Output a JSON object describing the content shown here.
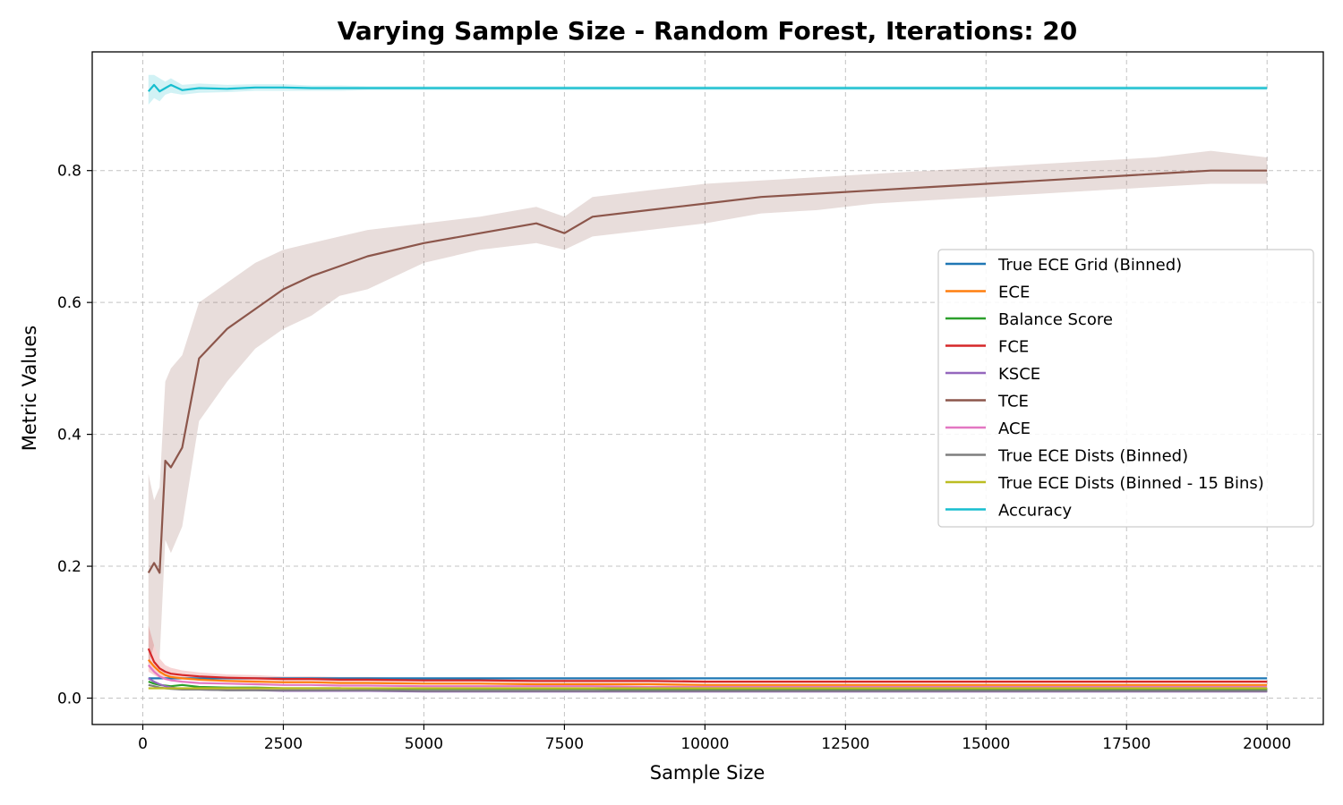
{
  "chart_data": {
    "type": "line",
    "title": "Varying Sample Size - Random Forest, Iterations: 20",
    "xlabel": "Sample Size",
    "ylabel": "Metric Values",
    "xlim": [
      -900,
      21000
    ],
    "ylim": [
      -0.04,
      0.98
    ],
    "xticks": [
      0,
      2500,
      5000,
      7500,
      10000,
      12500,
      15000,
      17500,
      20000
    ],
    "yticks": [
      0.0,
      0.2,
      0.4,
      0.6,
      0.8
    ],
    "grid": true,
    "legend_position": "center-right",
    "x": [
      100,
      200,
      300,
      400,
      500,
      700,
      1000,
      1500,
      2000,
      2500,
      3000,
      3500,
      4000,
      5000,
      6000,
      7000,
      7500,
      8000,
      9000,
      10000,
      11000,
      12000,
      13000,
      14000,
      15000,
      16000,
      17000,
      18000,
      19000,
      20000
    ],
    "series": [
      {
        "name": "True ECE Grid (Binned)",
        "color": "#1f77b4",
        "values": [
          0.03,
          0.03,
          0.03,
          0.03,
          0.03,
          0.03,
          0.03,
          0.03,
          0.03,
          0.03,
          0.03,
          0.03,
          0.03,
          0.03,
          0.03,
          0.03,
          0.03,
          0.03,
          0.03,
          0.03,
          0.03,
          0.03,
          0.03,
          0.03,
          0.03,
          0.03,
          0.03,
          0.03,
          0.03,
          0.03
        ]
      },
      {
        "name": "ECE",
        "color": "#ff7f0e",
        "values": [
          0.058,
          0.048,
          0.04,
          0.035,
          0.032,
          0.03,
          0.028,
          0.026,
          0.025,
          0.024,
          0.024,
          0.023,
          0.023,
          0.022,
          0.022,
          0.021,
          0.021,
          0.021,
          0.021,
          0.02,
          0.02,
          0.02,
          0.02,
          0.02,
          0.02,
          0.02,
          0.02,
          0.02,
          0.02,
          0.02
        ]
      },
      {
        "name": "Balance Score",
        "color": "#2ca02c",
        "values": [
          0.025,
          0.022,
          0.02,
          0.019,
          0.018,
          0.02,
          0.017,
          0.016,
          0.016,
          0.015,
          0.015,
          0.015,
          0.014,
          0.014,
          0.014,
          0.014,
          0.014,
          0.014,
          0.013,
          0.013,
          0.013,
          0.013,
          0.013,
          0.013,
          0.013,
          0.013,
          0.013,
          0.013,
          0.013,
          0.013
        ]
      },
      {
        "name": "FCE",
        "color": "#d62728",
        "values": [
          0.075,
          0.055,
          0.045,
          0.04,
          0.037,
          0.035,
          0.033,
          0.031,
          0.03,
          0.029,
          0.029,
          0.028,
          0.028,
          0.027,
          0.027,
          0.026,
          0.026,
          0.026,
          0.026,
          0.025,
          0.025,
          0.025,
          0.025,
          0.025,
          0.025,
          0.025,
          0.025,
          0.025,
          0.025,
          0.025
        ]
      },
      {
        "name": "KSCE",
        "color": "#9467bd",
        "values": [
          0.03,
          0.025,
          0.021,
          0.018,
          0.016,
          0.014,
          0.013,
          0.012,
          0.012,
          0.011,
          0.011,
          0.011,
          0.011,
          0.01,
          0.01,
          0.01,
          0.01,
          0.01,
          0.01,
          0.01,
          0.01,
          0.01,
          0.01,
          0.01,
          0.01,
          0.01,
          0.01,
          0.01,
          0.01,
          0.01
        ]
      },
      {
        "name": "TCE",
        "color": "#8c564b",
        "values": [
          0.19,
          0.205,
          0.19,
          0.36,
          0.35,
          0.38,
          0.515,
          0.56,
          0.59,
          0.62,
          0.64,
          0.655,
          0.67,
          0.69,
          0.705,
          0.72,
          0.705,
          0.73,
          0.74,
          0.75,
          0.76,
          0.765,
          0.77,
          0.775,
          0.78,
          0.785,
          0.79,
          0.795,
          0.8,
          0.8
        ]
      },
      {
        "name": "ACE",
        "color": "#e377c2",
        "values": [
          0.05,
          0.04,
          0.033,
          0.029,
          0.027,
          0.025,
          0.023,
          0.022,
          0.021,
          0.02,
          0.02,
          0.019,
          0.019,
          0.018,
          0.018,
          0.018,
          0.018,
          0.018,
          0.017,
          0.017,
          0.017,
          0.017,
          0.017,
          0.017,
          0.017,
          0.017,
          0.017,
          0.017,
          0.017,
          0.017
        ]
      },
      {
        "name": "True ECE Dists (Binned)",
        "color": "#7f7f7f",
        "values": [
          0.02,
          0.018,
          0.016,
          0.015,
          0.014,
          0.013,
          0.013,
          0.012,
          0.012,
          0.012,
          0.012,
          0.012,
          0.012,
          0.011,
          0.011,
          0.011,
          0.011,
          0.011,
          0.011,
          0.011,
          0.011,
          0.011,
          0.011,
          0.011,
          0.011,
          0.011,
          0.011,
          0.011,
          0.011,
          0.011
        ]
      },
      {
        "name": "True ECE Dists (Binned - 15 Bins)",
        "color": "#bcbd22",
        "values": [
          0.015,
          0.015,
          0.015,
          0.015,
          0.015,
          0.015,
          0.015,
          0.015,
          0.015,
          0.015,
          0.015,
          0.015,
          0.015,
          0.015,
          0.015,
          0.015,
          0.015,
          0.015,
          0.015,
          0.015,
          0.015,
          0.015,
          0.015,
          0.015,
          0.015,
          0.015,
          0.015,
          0.015,
          0.015,
          0.015
        ]
      },
      {
        "name": "Accuracy",
        "color": "#17becf",
        "values": [
          0.92,
          0.93,
          0.92,
          0.925,
          0.93,
          0.922,
          0.925,
          0.924,
          0.926,
          0.926,
          0.925,
          0.925,
          0.925,
          0.925,
          0.925,
          0.925,
          0.925,
          0.925,
          0.925,
          0.925,
          0.925,
          0.925,
          0.925,
          0.925,
          0.925,
          0.925,
          0.925,
          0.925,
          0.925,
          0.925
        ]
      }
    ],
    "bands": [
      {
        "series": "TCE",
        "lower": [
          0.05,
          0.08,
          0.06,
          0.24,
          0.22,
          0.26,
          0.42,
          0.48,
          0.53,
          0.56,
          0.58,
          0.61,
          0.62,
          0.66,
          0.68,
          0.69,
          0.68,
          0.7,
          0.71,
          0.72,
          0.735,
          0.74,
          0.75,
          0.755,
          0.76,
          0.765,
          0.77,
          0.775,
          0.78,
          0.78
        ],
        "upper": [
          0.34,
          0.3,
          0.32,
          0.48,
          0.5,
          0.52,
          0.6,
          0.63,
          0.66,
          0.68,
          0.69,
          0.7,
          0.71,
          0.72,
          0.73,
          0.745,
          0.73,
          0.76,
          0.77,
          0.78,
          0.785,
          0.79,
          0.795,
          0.8,
          0.805,
          0.81,
          0.815,
          0.82,
          0.83,
          0.82
        ]
      },
      {
        "series": "Accuracy",
        "lower": [
          0.9,
          0.91,
          0.905,
          0.915,
          0.918,
          0.915,
          0.918,
          0.919,
          0.921,
          0.921,
          0.921,
          0.921,
          0.922,
          0.922,
          0.922,
          0.922,
          0.922,
          0.922,
          0.922,
          0.922,
          0.922,
          0.922,
          0.922,
          0.922,
          0.922,
          0.922,
          0.922,
          0.922,
          0.922,
          0.922
        ],
        "upper": [
          0.945,
          0.945,
          0.94,
          0.935,
          0.94,
          0.93,
          0.932,
          0.93,
          0.931,
          0.931,
          0.929,
          0.929,
          0.928,
          0.928,
          0.928,
          0.928,
          0.928,
          0.928,
          0.928,
          0.928,
          0.928,
          0.928,
          0.928,
          0.928,
          0.928,
          0.928,
          0.928,
          0.928,
          0.928,
          0.928
        ]
      },
      {
        "series": "FCE",
        "lower": [
          0.04,
          0.035,
          0.03,
          0.03,
          0.028,
          0.028,
          0.027,
          0.026,
          0.025,
          0.025,
          0.025,
          0.024,
          0.024,
          0.024,
          0.024,
          0.023,
          0.023,
          0.023,
          0.023,
          0.023,
          0.023,
          0.023,
          0.023,
          0.023,
          0.023,
          0.023,
          0.023,
          0.023,
          0.023,
          0.023
        ],
        "upper": [
          0.11,
          0.08,
          0.06,
          0.05,
          0.046,
          0.042,
          0.039,
          0.036,
          0.035,
          0.033,
          0.033,
          0.032,
          0.032,
          0.03,
          0.03,
          0.029,
          0.029,
          0.029,
          0.029,
          0.027,
          0.027,
          0.027,
          0.027,
          0.027,
          0.027,
          0.027,
          0.027,
          0.027,
          0.027,
          0.027
        ]
      }
    ]
  }
}
